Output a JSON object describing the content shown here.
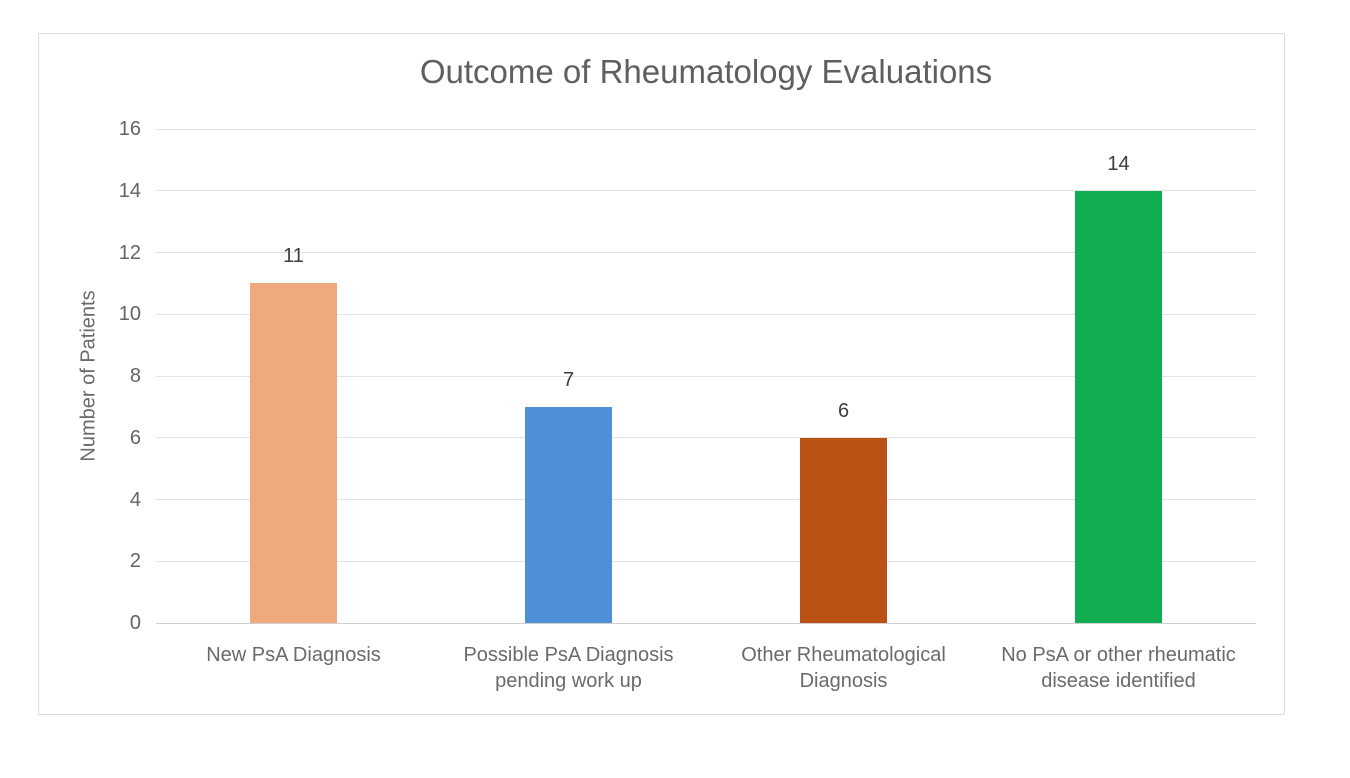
{
  "chart_data": {
    "type": "bar",
    "title": "Outcome of Rheumatology Evaluations",
    "xlabel": "",
    "ylabel": "Number of Patients",
    "categories": [
      "New PsA Diagnosis",
      "Possible PsA Diagnosis pending work up",
      "Other Rheumatological Diagnosis",
      "No PsA or other rheumatic disease identified"
    ],
    "values": [
      11,
      7,
      6,
      14
    ],
    "value_labels": [
      "11",
      "7",
      "6",
      "14"
    ],
    "bar_colors": [
      "#f0a97e",
      "#4e90d5",
      "#bc5116",
      "#10ae50"
    ],
    "ylim": [
      0,
      16
    ],
    "yticks": [
      0,
      2,
      4,
      6,
      8,
      10,
      12,
      14,
      16
    ],
    "grid": true,
    "legend": "none"
  },
  "style_colors": {
    "title_text": "#5f5f5f",
    "axis_text": "#646464",
    "gridline": "#e3e3e3",
    "card_border": "#dadce0",
    "background": "#ffffff"
  }
}
